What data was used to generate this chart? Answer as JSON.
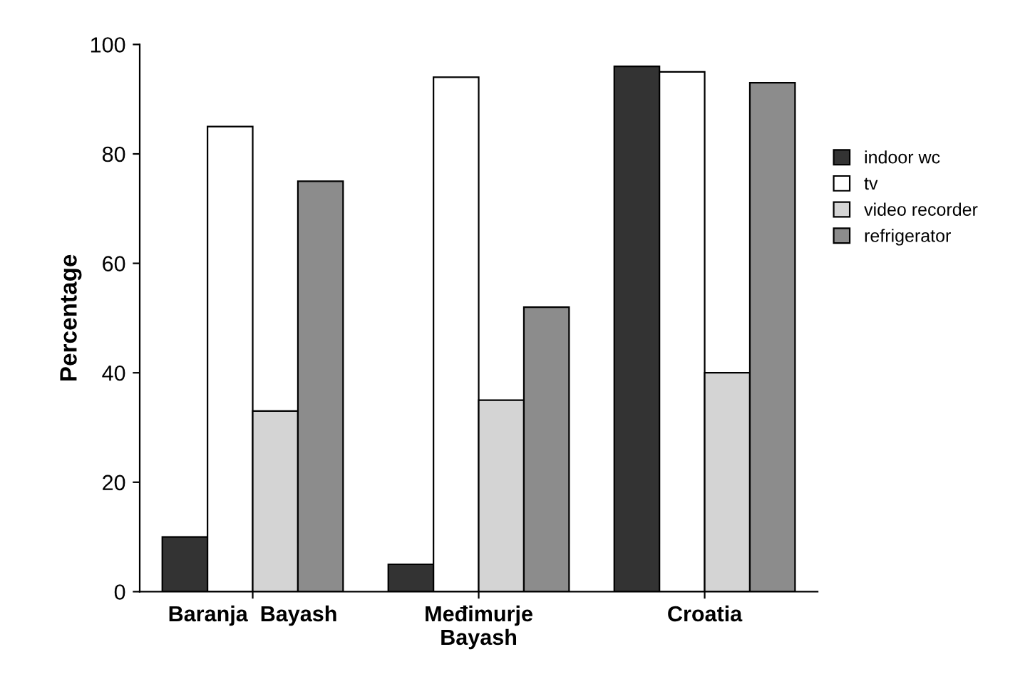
{
  "chart_data": {
    "type": "bar",
    "ylabel": "Percentage",
    "categories": [
      "Baranja  Bayash",
      "Međimurje\nBayash",
      "Croatia"
    ],
    "series": [
      {
        "name": "indoor wc",
        "color": "#333333",
        "values": [
          10,
          5,
          96
        ]
      },
      {
        "name": "tv",
        "color": "#ffffff",
        "values": [
          85,
          94,
          95
        ]
      },
      {
        "name": "video recorder",
        "color": "#d4d4d4",
        "values": [
          33,
          35,
          40
        ]
      },
      {
        "name": "refrigerator",
        "color": "#8c8c8c",
        "values": [
          75,
          52,
          93
        ]
      }
    ],
    "ylim": [
      0,
      100
    ],
    "yticks": [
      0,
      20,
      40,
      60,
      80,
      100
    ],
    "grid": false,
    "legend": "right"
  }
}
